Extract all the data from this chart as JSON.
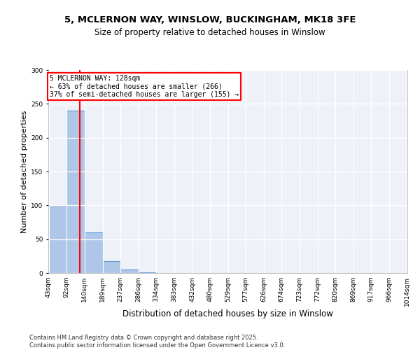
{
  "title1": "5, MCLERNON WAY, WINSLOW, BUCKINGHAM, MK18 3FE",
  "title2": "Size of property relative to detached houses in Winslow",
  "xlabel": "Distribution of detached houses by size in Winslow",
  "ylabel": "Number of detached properties",
  "bin_edges": [
    43,
    92,
    140,
    189,
    237,
    286,
    334,
    383,
    432,
    480,
    529,
    577,
    626,
    674,
    723,
    772,
    820,
    869,
    917,
    966,
    1014
  ],
  "bin_labels": [
    "43sqm",
    "92sqm",
    "140sqm",
    "189sqm",
    "237sqm",
    "286sqm",
    "334sqm",
    "383sqm",
    "432sqm",
    "480sqm",
    "529sqm",
    "577sqm",
    "626sqm",
    "674sqm",
    "723sqm",
    "772sqm",
    "820sqm",
    "869sqm",
    "917sqm",
    "966sqm",
    "1014sqm"
  ],
  "bar_heights": [
    100,
    240,
    60,
    18,
    5,
    1,
    0,
    0,
    0,
    0,
    0,
    0,
    0,
    0,
    0,
    0,
    0,
    0,
    0,
    0
  ],
  "bar_color": "#aec6e8",
  "bar_edgecolor": "#5b9bd5",
  "property_size": 128,
  "vline_color": "#ff0000",
  "annotation_line1": "5 MCLERNON WAY: 128sqm",
  "annotation_line2": "← 63% of detached houses are smaller (266)",
  "annotation_line3": "37% of semi-detached houses are larger (155) →",
  "annotation_box_color": "#ffffff",
  "annotation_box_edgecolor": "#ff0000",
  "ylim": [
    0,
    300
  ],
  "yticks": [
    0,
    50,
    100,
    150,
    200,
    250,
    300
  ],
  "background_color": "#eef2f8",
  "footer_line1": "Contains HM Land Registry data © Crown copyright and database right 2025.",
  "footer_line2": "Contains public sector information licensed under the Open Government Licence v3.0.",
  "title_fontsize": 9.5,
  "subtitle_fontsize": 8.5,
  "axis_label_fontsize": 8,
  "tick_fontsize": 6.5,
  "annotation_fontsize": 7,
  "footer_fontsize": 6
}
